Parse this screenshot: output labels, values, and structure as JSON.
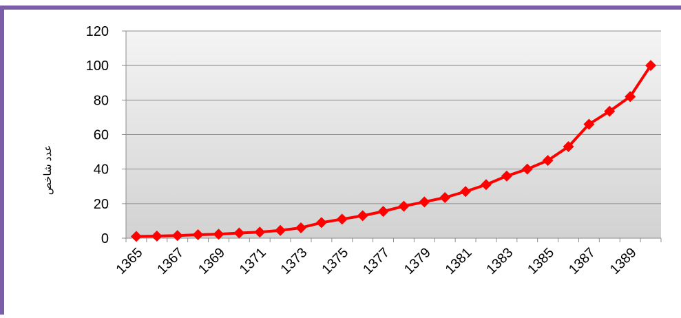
{
  "chart_data": {
    "type": "line",
    "y_label": "عدد شاخص",
    "categories": [
      "1365",
      null,
      "1367",
      null,
      "1369",
      null,
      "1371",
      null,
      "1373",
      null,
      "1375",
      null,
      "1377",
      null,
      "1379",
      null,
      "1381",
      null,
      "1383",
      null,
      "1385",
      null,
      "1387",
      null,
      "1389",
      null
    ],
    "series": [
      {
        "name": null,
        "color": "#ff0000",
        "values": [
          1,
          1.2,
          1.5,
          2,
          2.3,
          3,
          3.5,
          4.5,
          6,
          9,
          11,
          13,
          15.5,
          18.5,
          21,
          23.5,
          27,
          31,
          36,
          40,
          45,
          53,
          66,
          73.5,
          82,
          100
        ]
      }
    ],
    "ylim": [
      0,
      120
    ],
    "yticks": [
      0,
      20,
      40,
      60,
      80,
      100,
      120
    ],
    "grid": true
  }
}
